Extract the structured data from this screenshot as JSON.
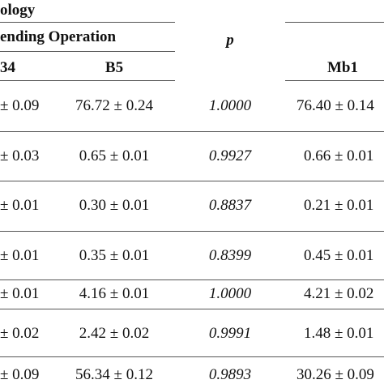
{
  "header": {
    "top_fragment": "ology",
    "group_fragment": "ending Operation",
    "p_label": "p",
    "col_b4_fragment": "34",
    "col_b5": "B5",
    "col_mb1": "Mb1"
  },
  "rows": [
    {
      "b4": "± 0.09",
      "b5": "76.72 ± 0.24",
      "p": "1.0000",
      "mb1": "76.40 ± 0.14"
    },
    {
      "b4": "± 0.03",
      "b5": "0.65 ± 0.01",
      "p": "0.9927",
      "mb1": "0.66 ± 0.01"
    },
    {
      "b4": "± 0.01",
      "b5": "0.30 ± 0.01",
      "p": "0.8837",
      "mb1": "0.21 ± 0.01"
    },
    {
      "b4": "± 0.01",
      "b5": "0.35 ± 0.01",
      "p": "0.8399",
      "mb1": "0.45 ± 0.01"
    },
    {
      "b4": "± 0.01",
      "b5": "4.16 ± 0.01",
      "p": "1.0000",
      "mb1": "4.21 ± 0.02"
    },
    {
      "b4": "± 0.02",
      "b5": "2.42 ± 0.02",
      "p": "0.9991",
      "mb1": "1.48 ± 0.01"
    },
    {
      "b4": "± 0.09",
      "b5": "56.34 ± 0.12",
      "p": "0.9893",
      "mb1": "30.26 ± 0.09"
    }
  ]
}
